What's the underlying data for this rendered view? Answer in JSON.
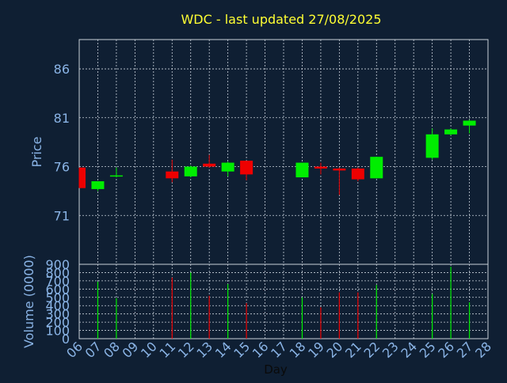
{
  "colors": {
    "background": "#0f1f33",
    "panel_border": "#c8d0da",
    "grid": "#c8d0da",
    "title": "#ffff33",
    "axis_text": "#8ab4e6",
    "xlabel_text": "#0a0a0a",
    "up": "#00ee00",
    "down": "#ee0000"
  },
  "chart_data": [
    {
      "type": "candlestick",
      "title": "WDC - last updated 27/08/2025",
      "ylabel": "Price",
      "ylim": [
        66,
        89
      ],
      "yticks": [
        71,
        76,
        81,
        86
      ],
      "xlim": [
        6,
        28
      ],
      "grid": true,
      "candles": [
        {
          "day": 6,
          "open": 75.9,
          "high": 75.9,
          "low": 73.8,
          "close": 73.8,
          "dir": "down"
        },
        {
          "day": 7,
          "open": 73.7,
          "high": 74.5,
          "low": 73.5,
          "close": 74.5,
          "dir": "up"
        },
        {
          "day": 8,
          "open": 75.0,
          "high": 75.9,
          "low": 74.9,
          "close": 75.1,
          "dir": "up"
        },
        {
          "day": 11,
          "open": 75.5,
          "high": 76.7,
          "low": 74.4,
          "close": 74.8,
          "dir": "down"
        },
        {
          "day": 12,
          "open": 75.0,
          "high": 76.1,
          "low": 74.9,
          "close": 76.0,
          "dir": "up"
        },
        {
          "day": 13,
          "open": 76.3,
          "high": 77.2,
          "low": 75.9,
          "close": 76.0,
          "dir": "down"
        },
        {
          "day": 14,
          "open": 75.5,
          "high": 76.5,
          "low": 75.0,
          "close": 76.4,
          "dir": "up"
        },
        {
          "day": 15,
          "open": 76.6,
          "high": 76.6,
          "low": 74.6,
          "close": 75.2,
          "dir": "down"
        },
        {
          "day": 18,
          "open": 74.9,
          "high": 76.4,
          "low": 74.9,
          "close": 76.4,
          "dir": "up"
        },
        {
          "day": 19,
          "open": 76.0,
          "high": 76.4,
          "low": 75.2,
          "close": 75.8,
          "dir": "down"
        },
        {
          "day": 20,
          "open": 75.8,
          "high": 75.9,
          "low": 73.1,
          "close": 75.6,
          "dir": "down"
        },
        {
          "day": 21,
          "open": 75.8,
          "high": 75.9,
          "low": 74.5,
          "close": 74.7,
          "dir": "down"
        },
        {
          "day": 22,
          "open": 74.8,
          "high": 77.0,
          "low": 74.8,
          "close": 77.0,
          "dir": "up"
        },
        {
          "day": 25,
          "open": 76.9,
          "high": 79.9,
          "low": 76.7,
          "close": 79.3,
          "dir": "up"
        },
        {
          "day": 26,
          "open": 79.3,
          "high": 79.9,
          "low": 79.2,
          "close": 79.8,
          "dir": "up"
        },
        {
          "day": 27,
          "open": 80.2,
          "high": 80.8,
          "low": 79.4,
          "close": 80.7,
          "dir": "up"
        }
      ]
    },
    {
      "type": "bar",
      "ylabel": "Volume (0000)",
      "xlabel": "Day",
      "ylim": [
        0,
        900
      ],
      "yticks": [
        0,
        100,
        200,
        300,
        400,
        500,
        600,
        700,
        800,
        900
      ],
      "xlim": [
        6,
        28
      ],
      "xticks": [
        "06",
        "07",
        "08",
        "09",
        "10",
        "11",
        "12",
        "13",
        "14",
        "15",
        "16",
        "17",
        "18",
        "19",
        "20",
        "21",
        "22",
        "23",
        "24",
        "25",
        "26",
        "27",
        "28"
      ],
      "grid": true,
      "bars": [
        {
          "day": 6,
          "value": 0,
          "dir": "down"
        },
        {
          "day": 7,
          "value": 690,
          "dir": "up"
        },
        {
          "day": 8,
          "value": 490,
          "dir": "up"
        },
        {
          "day": 11,
          "value": 740,
          "dir": "down"
        },
        {
          "day": 12,
          "value": 800,
          "dir": "up"
        },
        {
          "day": 13,
          "value": 520,
          "dir": "down"
        },
        {
          "day": 14,
          "value": 660,
          "dir": "up"
        },
        {
          "day": 15,
          "value": 430,
          "dir": "down"
        },
        {
          "day": 18,
          "value": 500,
          "dir": "up"
        },
        {
          "day": 19,
          "value": 380,
          "dir": "down"
        },
        {
          "day": 20,
          "value": 560,
          "dir": "down"
        },
        {
          "day": 21,
          "value": 560,
          "dir": "down"
        },
        {
          "day": 22,
          "value": 650,
          "dir": "up"
        },
        {
          "day": 25,
          "value": 540,
          "dir": "up"
        },
        {
          "day": 26,
          "value": 870,
          "dir": "up"
        },
        {
          "day": 27,
          "value": 440,
          "dir": "up"
        }
      ]
    }
  ]
}
